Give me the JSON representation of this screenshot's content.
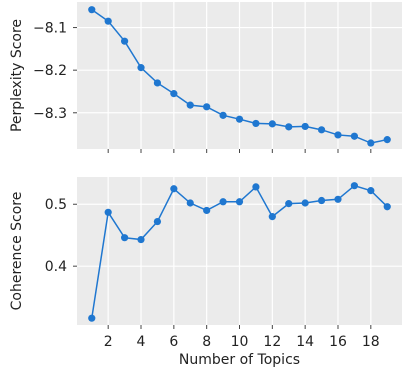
{
  "chart_data": [
    {
      "type": "line",
      "xlabel": "",
      "ylabel": "Perplexity Score",
      "x": [
        1,
        2,
        3,
        4,
        5,
        6,
        7,
        8,
        9,
        10,
        11,
        12,
        13,
        14,
        15,
        16,
        17,
        18,
        19
      ],
      "values": [
        -8.058,
        -8.085,
        -8.132,
        -8.194,
        -8.23,
        -8.255,
        -8.282,
        -8.286,
        -8.306,
        -8.315,
        -8.325,
        -8.326,
        -8.333,
        -8.332,
        -8.34,
        -8.352,
        -8.355,
        -8.371,
        -8.363
      ],
      "ylim": [
        -8.385,
        -8.04
      ],
      "yticks": [
        -8.1,
        -8.2,
        -8.3
      ],
      "ytick_labels": [
        "−8.1",
        "−8.2",
        "−8.3"
      ],
      "grid": true,
      "color": "#1f77d0"
    },
    {
      "type": "line",
      "xlabel": "Number of Topics",
      "ylabel": "Coherence Score",
      "x": [
        1,
        2,
        3,
        4,
        5,
        6,
        7,
        8,
        9,
        10,
        11,
        12,
        13,
        14,
        15,
        16,
        17,
        18,
        19
      ],
      "values": [
        0.316,
        0.487,
        0.446,
        0.443,
        0.472,
        0.525,
        0.502,
        0.49,
        0.504,
        0.504,
        0.528,
        0.48,
        0.501,
        0.502,
        0.506,
        0.508,
        0.53,
        0.522,
        0.496
      ],
      "ylim": [
        0.305,
        0.544
      ],
      "yticks": [
        0.4,
        0.5
      ],
      "ytick_labels": [
        "0.4",
        "0.5"
      ],
      "xlim": [
        0.1,
        19.9
      ],
      "xticks": [
        2,
        4,
        6,
        8,
        10,
        12,
        14,
        16,
        18
      ],
      "xtick_labels": [
        "2",
        "4",
        "6",
        "8",
        "10",
        "12",
        "14",
        "16",
        "18"
      ],
      "grid": true,
      "color": "#1f77d0"
    }
  ],
  "style": {
    "panel_bg": "#ebebeb",
    "grid_color": "#ffffff",
    "line_color": "#1f77d0"
  }
}
